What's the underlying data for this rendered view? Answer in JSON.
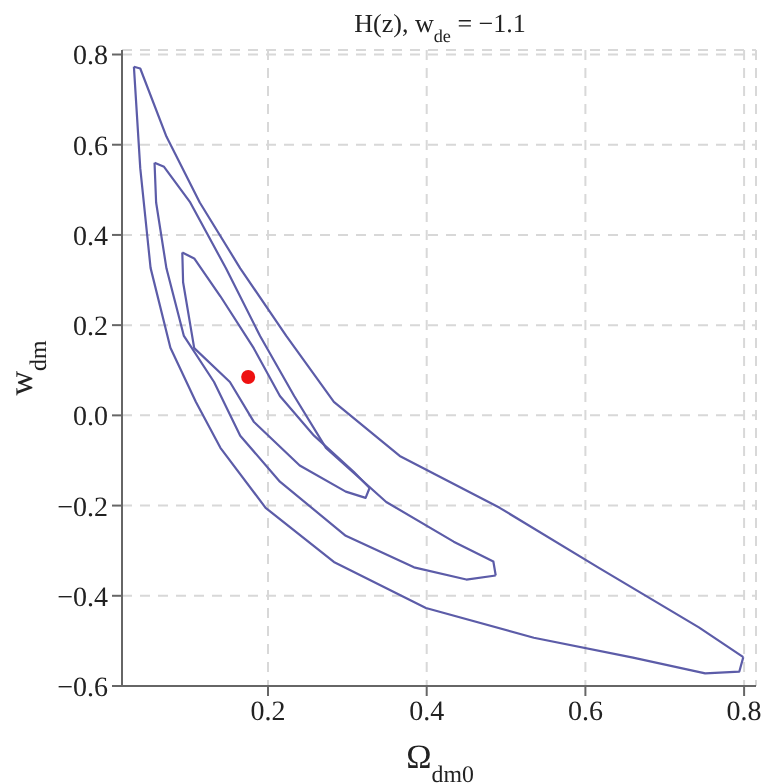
{
  "chart_data": {
    "type": "line",
    "title": "H(z),  w$_{de}$ = −1.1",
    "xlabel": "Ω$_{dm0}$",
    "ylabel": "w$_{dm}$",
    "xlim": [
      0.016,
      0.815
    ],
    "ylim": [
      -0.6,
      0.81
    ],
    "xticks": [
      0.2,
      0.4,
      0.6,
      0.8
    ],
    "yticks": [
      {
        "value": -0.6,
        "label": "−0.6"
      },
      {
        "value": -0.4,
        "label": "−0.4"
      },
      {
        "value": -0.2,
        "label": "−0.2"
      },
      {
        "value": 0,
        "label": "0.0"
      },
      0.2,
      0.4,
      0.6,
      0.8
    ],
    "grid": true,
    "line_style": "solid",
    "series": [
      {
        "color": "#5c5ca8",
        "x": [
          0.031,
          0.039,
          0.052,
          0.077,
          0.109,
          0.14,
          0.197,
          0.283,
          0.399,
          0.535,
          0.66,
          0.751,
          0.794,
          0.799
        ],
        "values": [
          0.773,
          0.548,
          0.327,
          0.15,
          0.03,
          -0.072,
          -0.205,
          -0.325,
          -0.427,
          -0.493,
          -0.537,
          -0.572,
          -0.568,
          -0.536
        ]
      },
      {
        "color": "#5c5ca8",
        "x": [
          0.031,
          0.039,
          0.072,
          0.114,
          0.165,
          0.223,
          0.283,
          0.366,
          0.492,
          0.617,
          0.743,
          0.799
        ],
        "values": [
          0.773,
          0.769,
          0.618,
          0.472,
          0.326,
          0.176,
          0.03,
          -0.09,
          -0.205,
          -0.338,
          -0.47,
          -0.536
        ]
      },
      {
        "color": "#5c5ca8",
        "x": [
          0.057,
          0.059,
          0.072,
          0.094,
          0.132,
          0.165,
          0.215,
          0.298,
          0.384,
          0.45,
          0.487
        ],
        "values": [
          0.56,
          0.472,
          0.326,
          0.176,
          0.074,
          -0.045,
          -0.147,
          -0.267,
          -0.337,
          -0.364,
          -0.355
        ]
      },
      {
        "color": "#5c5ca8",
        "x": [
          0.057,
          0.069,
          0.102,
          0.147,
          0.19,
          0.233,
          0.273,
          0.349,
          0.434,
          0.484,
          0.487
        ],
        "values": [
          0.56,
          0.551,
          0.472,
          0.326,
          0.176,
          0.043,
          -0.072,
          -0.192,
          -0.28,
          -0.324,
          -0.355
        ]
      },
      {
        "color": "#5c5ca8",
        "x": [
          0.092,
          0.093,
          0.107,
          0.152,
          0.182,
          0.24,
          0.298,
          0.323,
          0.328
        ],
        "values": [
          0.361,
          0.295,
          0.149,
          0.074,
          -0.014,
          -0.111,
          -0.169,
          -0.183,
          -0.161
        ]
      },
      {
        "color": "#5c5ca8",
        "x": [
          0.092,
          0.107,
          0.14,
          0.182,
          0.215,
          0.258,
          0.308,
          0.328
        ],
        "values": [
          0.361,
          0.348,
          0.264,
          0.149,
          0.043,
          -0.045,
          -0.125,
          -0.161
        ]
      },
      {
        "type": "scatter",
        "color": "#ee1111",
        "marker": "circle",
        "x": [
          0.175
        ],
        "values": [
          0.085
        ]
      }
    ]
  }
}
